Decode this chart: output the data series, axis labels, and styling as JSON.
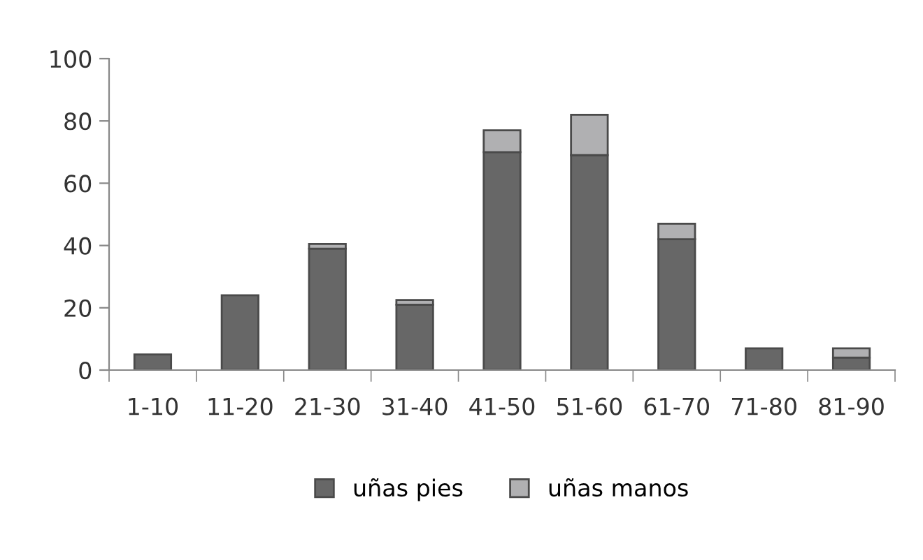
{
  "chart_data": {
    "type": "bar",
    "stacked": true,
    "categories": [
      "1-10",
      "11-20",
      "21-30",
      "31-40",
      "41-50",
      "51-60",
      "61-70",
      "71-80",
      "81-90"
    ],
    "series": [
      {
        "name": "uñas pies",
        "color": "#676767",
        "values": [
          5,
          24,
          39,
          21,
          70,
          69,
          42,
          7,
          4
        ]
      },
      {
        "name": "uñas manos",
        "color": "#b0b0b2",
        "values": [
          null,
          null,
          1.5,
          1.5,
          7,
          13,
          5,
          null,
          3
        ]
      }
    ],
    "ylim": [
      0,
      100
    ],
    "yticks": [
      0,
      20,
      40,
      60,
      80,
      100
    ],
    "grid": false,
    "legend": "bottom"
  }
}
